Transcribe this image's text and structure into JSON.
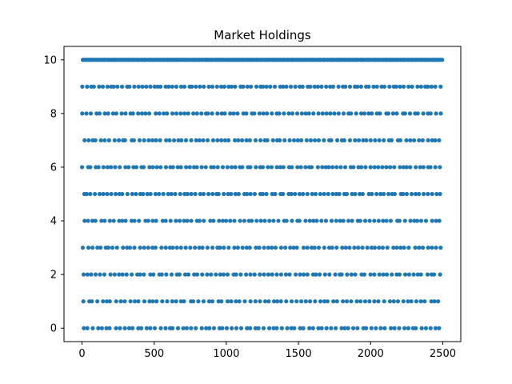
{
  "chart_data": {
    "type": "scatter",
    "title": "Market Holdings",
    "xlabel": "",
    "ylabel": "",
    "xlim": [
      -125,
      2625
    ],
    "ylim": [
      -0.5,
      10.5
    ],
    "x_ticks": [
      0,
      500,
      1000,
      1500,
      2000,
      2500
    ],
    "y_ticks": [
      0,
      2,
      4,
      6,
      8,
      10
    ],
    "grid": false,
    "legend": "none",
    "marker_color": "#1f77b4",
    "series": [
      {
        "x_range": [
          0,
          2500
        ],
        "y_levels": [
          0,
          1,
          2,
          3,
          4,
          5,
          6,
          7,
          8,
          9,
          10
        ],
        "points_per_level": [
          80,
          78,
          82,
          84,
          83,
          90,
          88,
          84,
          86,
          92,
          260
        ]
      }
    ]
  }
}
